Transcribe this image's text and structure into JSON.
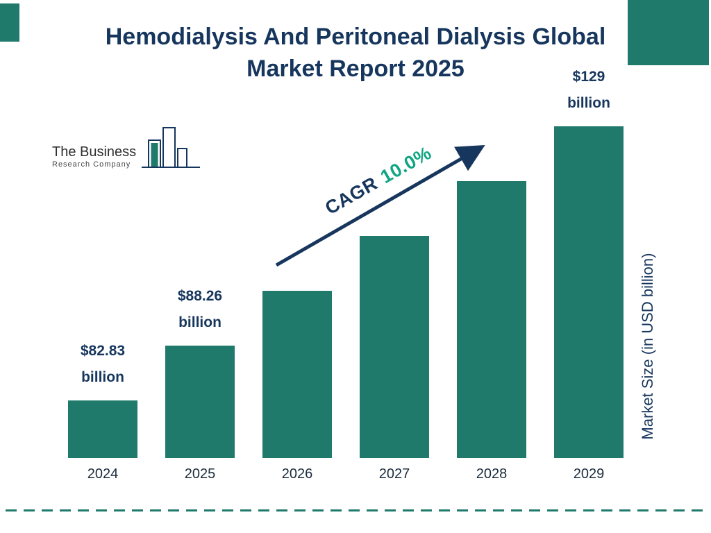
{
  "header": {
    "title_line1": "Hemodialysis And Peritoneal Dialysis Global",
    "title_line2": "Market Report 2025"
  },
  "logo": {
    "line1": "The Business",
    "line2": "Research Company"
  },
  "cagr": {
    "label": "CAGR",
    "value": "10.0%"
  },
  "chart_data": {
    "type": "bar",
    "title": "Hemodialysis And Peritoneal Dialysis Global Market Report 2025",
    "categories": [
      "2024",
      "2025",
      "2026",
      "2027",
      "2028",
      "2029"
    ],
    "values": [
      82.83,
      88.26,
      97.09,
      106.8,
      117.48,
      129
    ],
    "unit": "USD billion",
    "bar_labels": [
      "$82.83 billion",
      "$88.26 billion",
      null,
      null,
      null,
      "$129 billion"
    ],
    "cagr_percent": 10.0,
    "xlabel": "",
    "ylabel": "Market Size (in USD billion)",
    "legend": false,
    "grid": false
  },
  "colors": {
    "bar_teal": "#1F7A6B",
    "navy": "#17365D",
    "cagr_green": "#0FA583",
    "year_text": "#1A2B3C"
  }
}
